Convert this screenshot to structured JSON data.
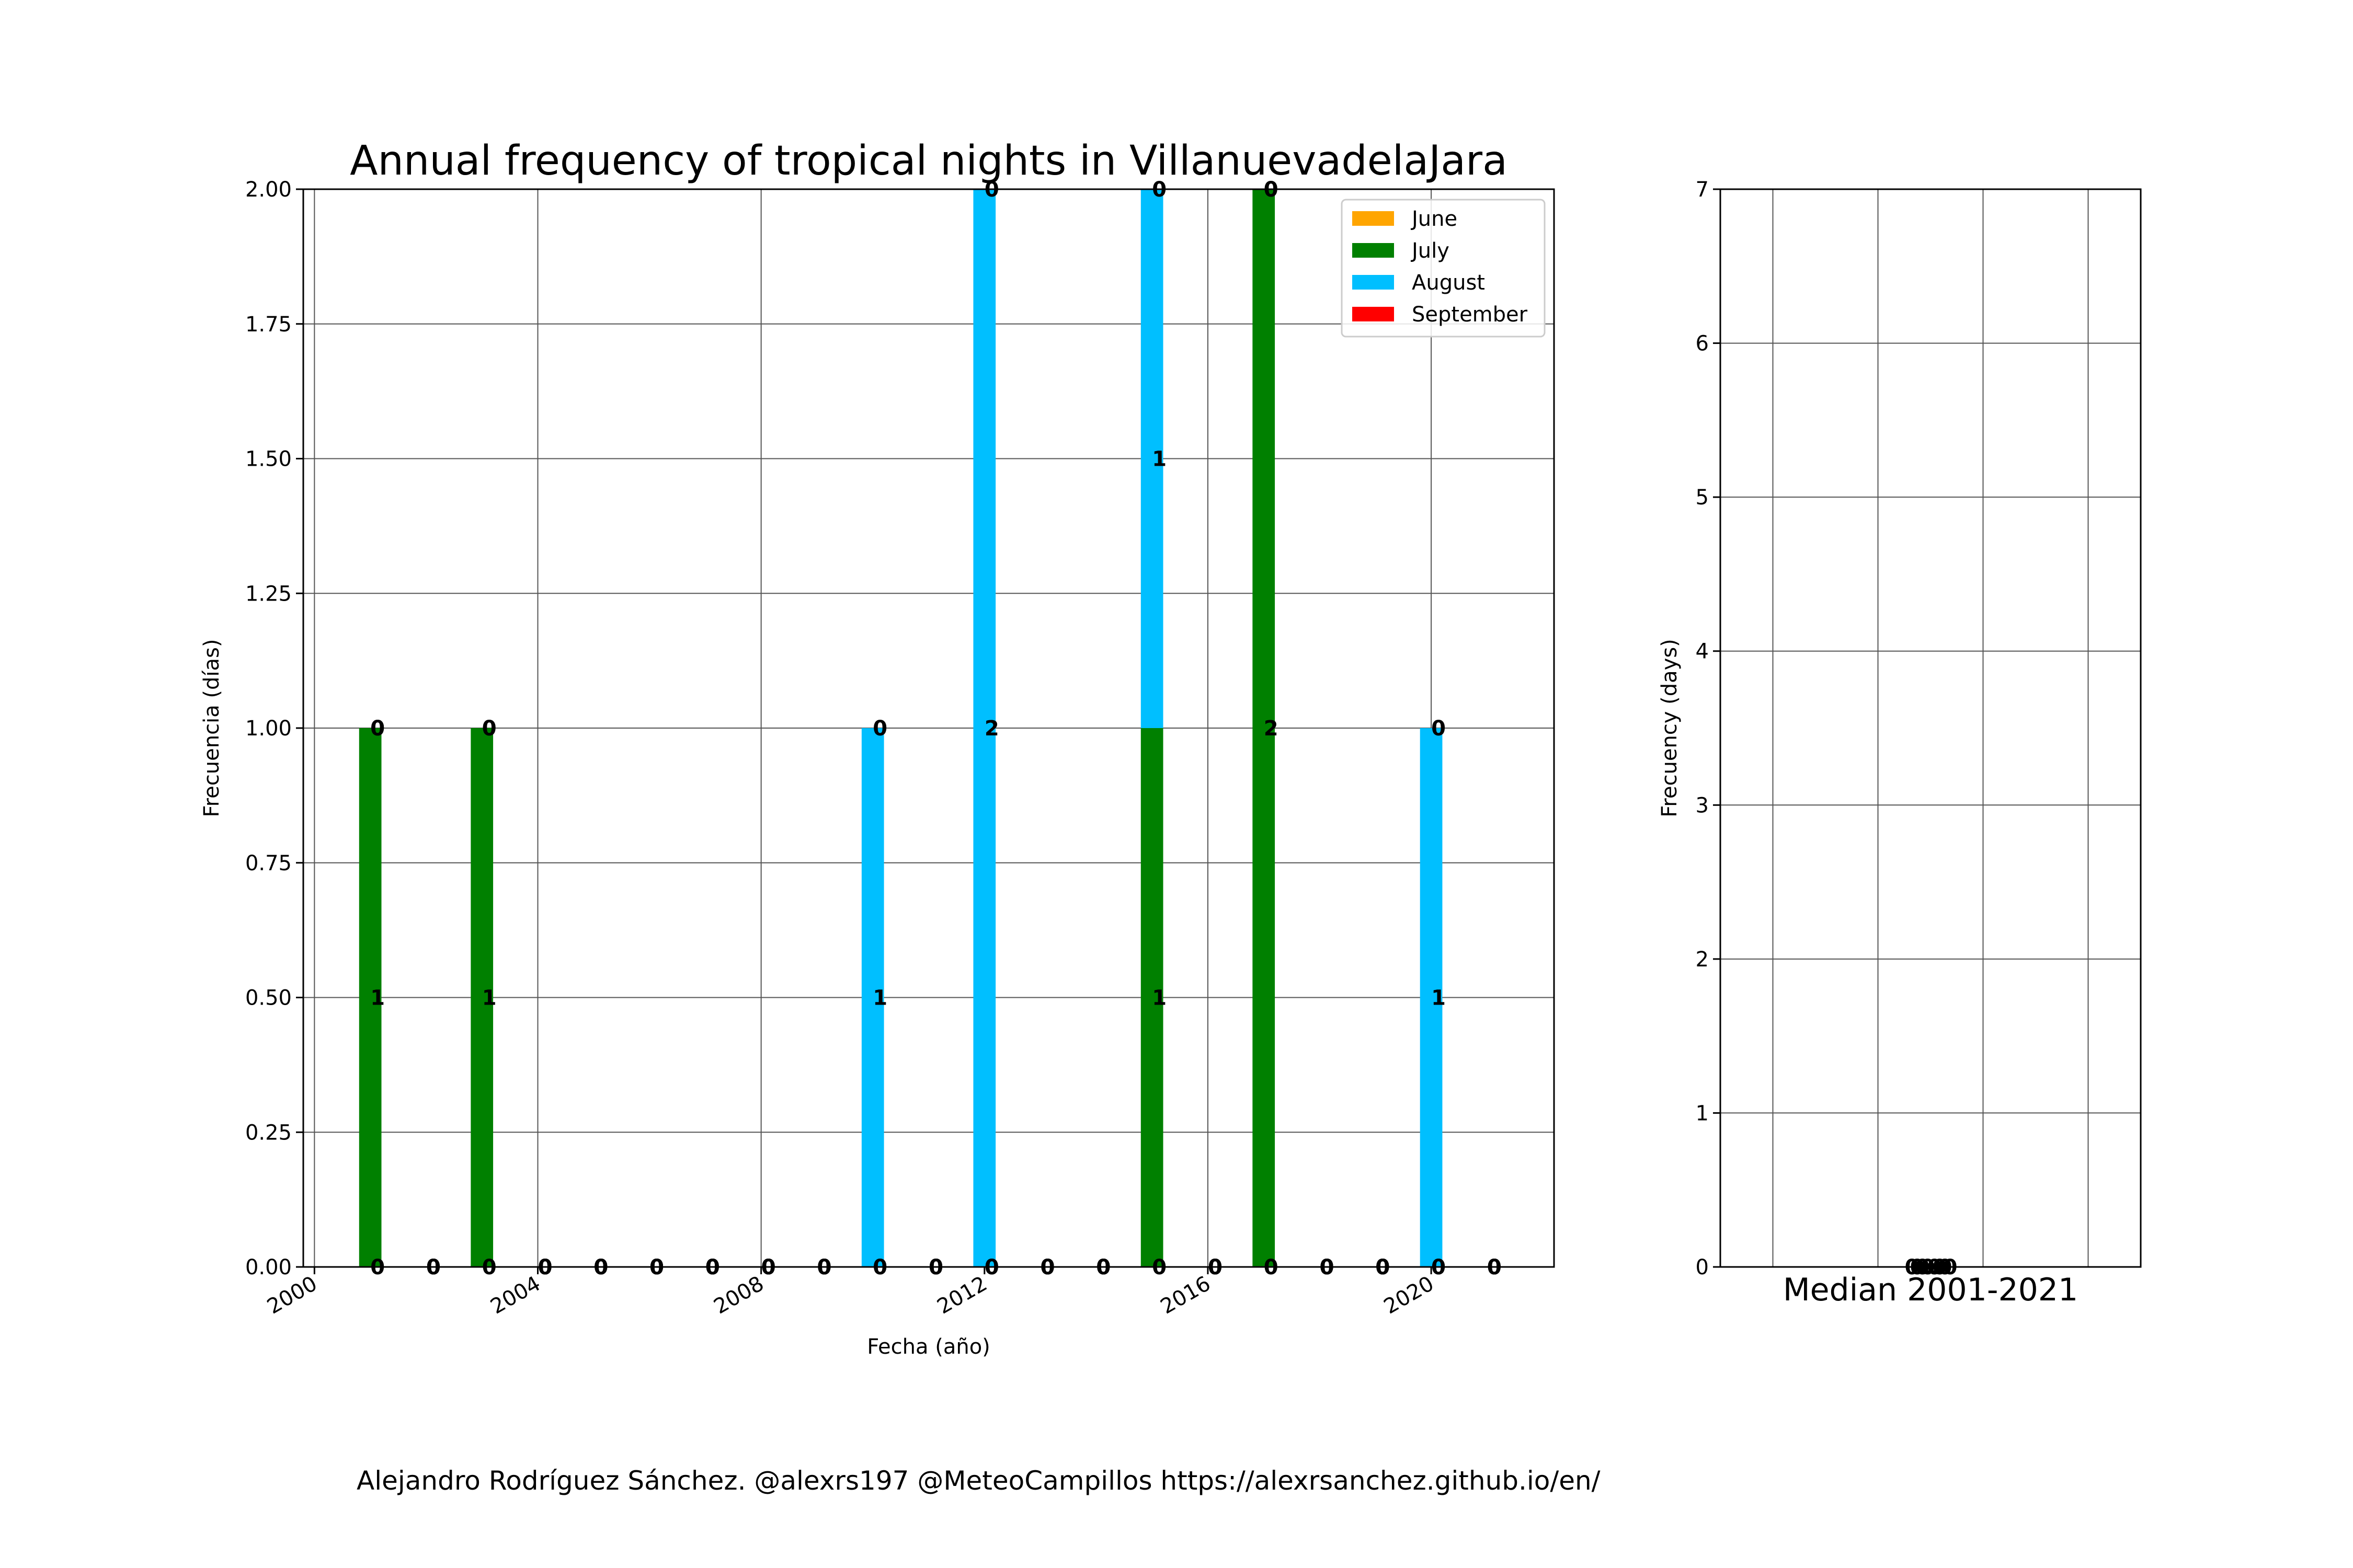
{
  "title": "Annual frequency of tropical nights in VillanuevadelaJara",
  "footer": "Alejandro Rodríguez Sánchez. @alexrs197 @MeteoCampillos   https://alexrsanchez.github.io/en/",
  "chart_data": [
    {
      "type": "bar",
      "stacked": true,
      "title": "Annual frequency of tropical nights in VillanuevadelaJara",
      "xlabel": "Fecha (año)",
      "ylabel": "Frecuencia (días)",
      "xlim": [
        1999.8,
        2022.2
      ],
      "ylim": [
        0,
        2
      ],
      "xticks": [
        "2000",
        "2004",
        "2008",
        "2012",
        "2016",
        "2020"
      ],
      "yticks": [
        "0.00",
        "0.25",
        "0.50",
        "0.75",
        "1.00",
        "1.25",
        "1.50",
        "1.75",
        "2.00"
      ],
      "grid": true,
      "legend_position": "top-right",
      "categories": [
        2001,
        2002,
        2003,
        2004,
        2005,
        2006,
        2007,
        2008,
        2009,
        2010,
        2011,
        2012,
        2013,
        2014,
        2015,
        2016,
        2017,
        2018,
        2019,
        2020,
        2021
      ],
      "series": [
        {
          "name": "June",
          "color": "#ffa500",
          "values": [
            0,
            0,
            0,
            0,
            0,
            0,
            0,
            0,
            0,
            0,
            0,
            0,
            0,
            0,
            0,
            0,
            0,
            0,
            0,
            0,
            0
          ]
        },
        {
          "name": "July",
          "color": "#008000",
          "values": [
            1,
            0,
            1,
            0,
            0,
            0,
            0,
            0,
            0,
            0,
            0,
            0,
            0,
            0,
            1,
            0,
            2,
            0,
            0,
            0,
            0
          ]
        },
        {
          "name": "August",
          "color": "#00bfff",
          "values": [
            0,
            0,
            0,
            0,
            0,
            0,
            0,
            0,
            0,
            1,
            0,
            2,
            0,
            0,
            1,
            0,
            0,
            0,
            0,
            1,
            0
          ]
        },
        {
          "name": "September",
          "color": "#ff0000",
          "values": [
            0,
            0,
            0,
            0,
            0,
            0,
            0,
            0,
            0,
            0,
            0,
            0,
            0,
            0,
            0,
            0,
            0,
            0,
            0,
            0,
            0
          ]
        }
      ]
    },
    {
      "type": "bar",
      "stacked": true,
      "title": "",
      "xlabel": "Median 2001-2021",
      "ylabel": "Frecuency (days)",
      "ylim": [
        0,
        7
      ],
      "yticks": [
        "0",
        "1",
        "2",
        "3",
        "4",
        "5",
        "6",
        "7"
      ],
      "grid": true,
      "values": [
        0,
        0,
        0,
        0
      ],
      "value_labels": [
        "0.0",
        "0.0",
        "0.0",
        "0.0"
      ]
    }
  ]
}
